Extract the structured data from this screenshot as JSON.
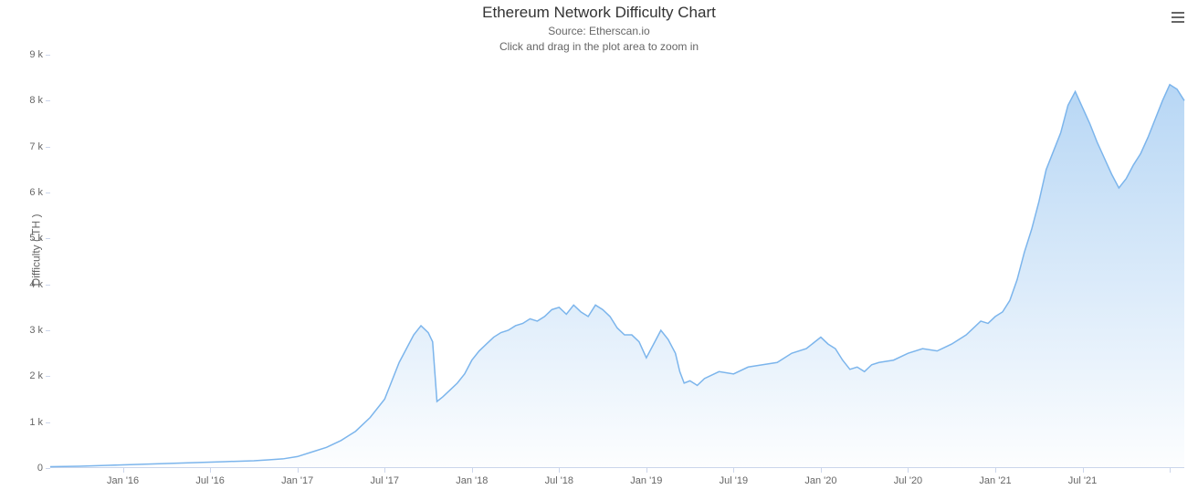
{
  "chart": {
    "type": "area",
    "title": "Ethereum Network Difficulty Chart",
    "subtitle_line1": "Source: Etherscan.io",
    "subtitle_line2": "Click and drag in the plot area to zoom in",
    "title_fontsize": 17,
    "subtitle_fontsize": 12,
    "title_color": "#333333",
    "subtitle_color": "#666666",
    "background_color": "#ffffff",
    "y_axis": {
      "label": "Difficulty ( TH )",
      "label_fontsize": 12,
      "min": 0,
      "max": 9000,
      "tick_step": 1000,
      "tick_labels": [
        "0",
        "1 k",
        "2 k",
        "3 k",
        "4 k",
        "5 k",
        "6 k",
        "7 k",
        "8 k",
        "9 k"
      ],
      "tick_fontsize": 11,
      "tick_color": "#666666",
      "tick_mark_color": "#ccd6eb"
    },
    "x_axis": {
      "min": 0,
      "max": 78,
      "tick_positions": [
        5,
        11,
        17,
        23,
        29,
        35,
        41,
        47,
        53,
        59,
        65,
        71,
        77
      ],
      "tick_labels": [
        "Jan '16",
        "Jul '16",
        "Jan '17",
        "Jul '17",
        "Jan '18",
        "Jul '18",
        "Jan '19",
        "Jul '19",
        "Jan '20",
        "Jul '20",
        "Jan '21",
        "Jul '21",
        ""
      ],
      "tick_fontsize": 11,
      "tick_color": "#666666",
      "tick_mark_color": "#ccd6eb",
      "axis_line_color": "#ccd6eb"
    },
    "series": {
      "line_color": "#7cb5ec",
      "line_width": 1.5,
      "fill_top_color": "rgba(124,181,236,0.55)",
      "fill_bottom_color": "rgba(124,181,236,0.02)",
      "x": [
        0,
        1,
        2,
        3,
        4,
        5,
        6,
        7,
        8,
        9,
        10,
        11,
        12,
        13,
        14,
        15,
        16,
        17,
        18,
        19,
        20,
        21,
        22,
        23,
        23.5,
        24,
        24.5,
        25,
        25.5,
        26,
        26.3,
        26.6,
        27,
        27.5,
        28,
        28.5,
        29,
        29.5,
        30,
        30.5,
        31,
        31.5,
        32,
        32.5,
        33,
        33.5,
        34,
        34.5,
        35,
        35.5,
        36,
        36.5,
        37,
        37.5,
        38,
        38.5,
        39,
        39.5,
        40,
        40.5,
        41,
        41.5,
        42,
        42.5,
        43,
        43.3,
        43.6,
        44,
        44.5,
        45,
        46,
        47,
        48,
        49,
        50,
        51,
        52,
        53,
        53.5,
        54,
        54.5,
        55,
        55.5,
        56,
        56.5,
        57,
        58,
        59,
        60,
        61,
        62,
        63,
        64,
        64.5,
        65,
        65.5,
        66,
        66.5,
        67,
        67.5,
        68,
        68.5,
        69,
        69.5,
        70,
        70.5,
        71,
        71.5,
        72,
        72.5,
        73,
        73.5,
        74,
        74.5,
        75,
        75.5,
        76,
        76.5,
        77,
        77.5,
        78
      ],
      "y": [
        30,
        35,
        40,
        50,
        60,
        70,
        80,
        90,
        100,
        110,
        120,
        130,
        140,
        150,
        160,
        180,
        200,
        250,
        350,
        450,
        600,
        800,
        1100,
        1500,
        1900,
        2300,
        2600,
        2900,
        3100,
        2950,
        2750,
        1450,
        1550,
        1700,
        1850,
        2050,
        2350,
        2550,
        2700,
        2850,
        2950,
        3000,
        3100,
        3150,
        3250,
        3200,
        3300,
        3450,
        3500,
        3350,
        3550,
        3400,
        3300,
        3550,
        3450,
        3300,
        3050,
        2900,
        2900,
        2750,
        2400,
        2700,
        3000,
        2800,
        2500,
        2100,
        1850,
        1900,
        1800,
        1950,
        2100,
        2050,
        2200,
        2250,
        2300,
        2500,
        2600,
        2850,
        2700,
        2600,
        2350,
        2150,
        2200,
        2100,
        2250,
        2300,
        2350,
        2500,
        2600,
        2550,
        2700,
        2900,
        3200,
        3150,
        3300,
        3400,
        3650,
        4100,
        4700,
        5200,
        5800,
        6500,
        6900,
        7300,
        7900,
        8200,
        7850,
        7500,
        7100,
        6750,
        6400,
        6100,
        6300,
        6600,
        6850,
        7200,
        7600,
        8000,
        8350,
        8250,
        8000
      ]
    },
    "menu_icon_color": "#666666"
  }
}
